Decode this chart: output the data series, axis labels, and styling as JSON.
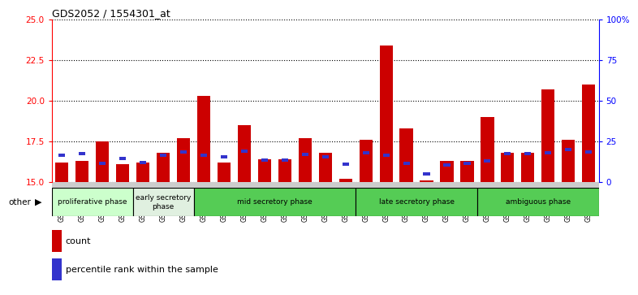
{
  "title": "GDS2052 / 1554301_at",
  "samples": [
    "GSM109814",
    "GSM109815",
    "GSM109816",
    "GSM109817",
    "GSM109820",
    "GSM109821",
    "GSM109822",
    "GSM109824",
    "GSM109825",
    "GSM109826",
    "GSM109827",
    "GSM109828",
    "GSM109829",
    "GSM109830",
    "GSM109831",
    "GSM109834",
    "GSM109835",
    "GSM109836",
    "GSM109837",
    "GSM109838",
    "GSM109839",
    "GSM109818",
    "GSM109819",
    "GSM109823",
    "GSM109832",
    "GSM109833",
    "GSM109840"
  ],
  "count_values": [
    16.2,
    16.3,
    17.5,
    16.1,
    16.2,
    16.8,
    17.7,
    20.3,
    16.2,
    18.5,
    16.4,
    16.4,
    17.7,
    16.8,
    15.2,
    17.6,
    23.4,
    18.3,
    15.1,
    16.3,
    16.3,
    19.0,
    16.8,
    16.8,
    20.7,
    17.6,
    21.0
  ],
  "percentile_values": [
    16.55,
    16.65,
    16.05,
    16.35,
    16.1,
    16.55,
    16.75,
    16.55,
    16.45,
    16.8,
    16.25,
    16.25,
    16.6,
    16.45,
    16.0,
    16.7,
    16.55,
    16.05,
    15.4,
    15.95,
    16.05,
    16.2,
    16.65,
    16.65,
    16.7,
    16.9,
    16.75
  ],
  "ylim_left": [
    15,
    25
  ],
  "ylim_right": [
    0,
    100
  ],
  "yticks_left": [
    15,
    17.5,
    20,
    22.5,
    25
  ],
  "yticks_right": [
    0,
    25,
    50,
    75,
    100
  ],
  "bar_color": "#cc0000",
  "blue_color": "#3333cc",
  "bar_width": 0.65,
  "tick_bg_color": "#cccccc",
  "plot_bg_color": "#ffffff",
  "phases": [
    {
      "label": "proliferative phase",
      "start": 0,
      "end": 4,
      "color": "#ccffcc"
    },
    {
      "label": "early secretory\nphase",
      "start": 4,
      "end": 7,
      "color": "#e0f0e0"
    },
    {
      "label": "mid secretory phase",
      "start": 7,
      "end": 15,
      "color": "#55cc55"
    },
    {
      "label": "late secretory phase",
      "start": 15,
      "end": 21,
      "color": "#55cc55"
    },
    {
      "label": "ambiguous phase",
      "start": 21,
      "end": 27,
      "color": "#55cc55"
    }
  ]
}
